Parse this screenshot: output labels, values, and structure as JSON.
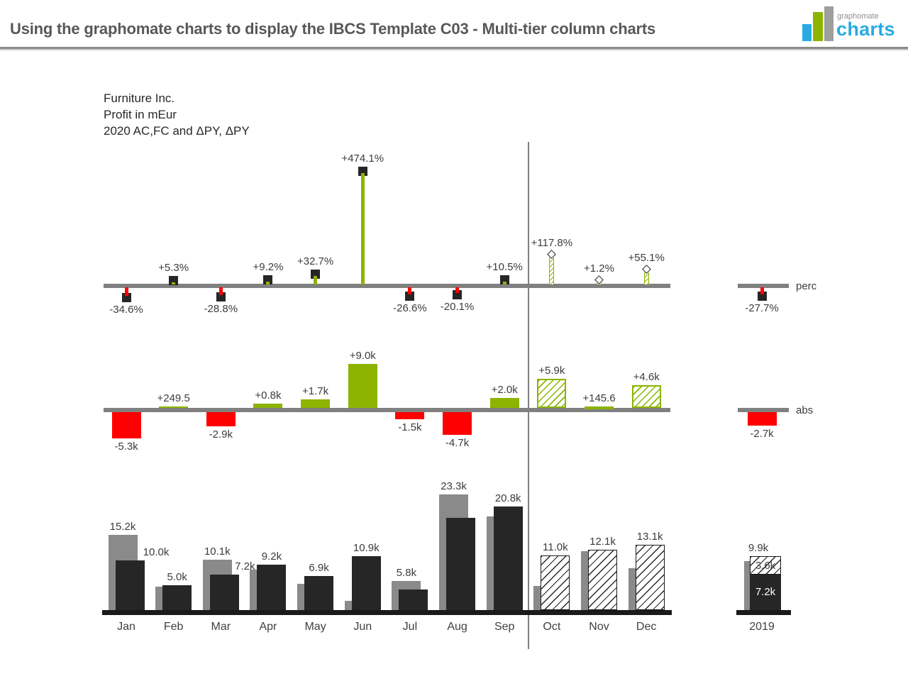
{
  "header": {
    "title": "Using the graphomate charts to display the IBCS Template C03 - Multi-tier column charts",
    "logo": {
      "small": "graphomate",
      "big": "charts"
    }
  },
  "colors": {
    "green": "#8CB400",
    "red": "#FF0000",
    "dark": "#262626",
    "gray": "#8A8A8A",
    "axis_gray": "#808080",
    "axis_black": "#1A1A1A",
    "label": "#3C3C3C",
    "logo_blue": "#29ABE2"
  },
  "chart_data": {
    "type": "bar",
    "multi_tier": true,
    "title": "Furniture Inc.",
    "unit_label": "Profit in mEur",
    "scenario_label": "2020 AC,FC and ΔPY, ΔPY",
    "categories": [
      "Jan",
      "Feb",
      "Mar",
      "Apr",
      "May",
      "Jun",
      "Jul",
      "Aug",
      "Sep",
      "Oct",
      "Nov",
      "Dec"
    ],
    "extra_category": "2019",
    "forecast_from": "Oct",
    "tiers": {
      "perc": {
        "legend": "perc",
        "unit": "%",
        "values": [
          {
            "v": -34.6,
            "label": "-34.6%",
            "kind": "ac"
          },
          {
            "v": 5.3,
            "label": "+5.3%",
            "kind": "ac"
          },
          {
            "v": -28.8,
            "label": "-28.8%",
            "kind": "ac"
          },
          {
            "v": 9.2,
            "label": "+9.2%",
            "kind": "ac"
          },
          {
            "v": 32.7,
            "label": "+32.7%",
            "kind": "ac"
          },
          {
            "v": 474.1,
            "label": "+474.1%",
            "kind": "ac"
          },
          {
            "v": -26.6,
            "label": "-26.6%",
            "kind": "ac"
          },
          {
            "v": -20.1,
            "label": "-20.1%",
            "kind": "ac"
          },
          {
            "v": 10.5,
            "label": "+10.5%",
            "kind": "ac"
          },
          {
            "v": 117.8,
            "label": "+117.8%",
            "kind": "fc"
          },
          {
            "v": 1.2,
            "label": "+1.2%",
            "kind": "fc"
          },
          {
            "v": 55.1,
            "label": "+55.1%",
            "kind": "fc"
          }
        ],
        "y2019": {
          "v": -27.7,
          "label": "-27.7%",
          "kind": "ac"
        }
      },
      "abs": {
        "legend": "abs",
        "unit": "k mEur",
        "values": [
          {
            "v": -5.3,
            "label": "-5.3k",
            "kind": "ac"
          },
          {
            "v": 0.25,
            "label": "+249.5",
            "kind": "ac"
          },
          {
            "v": -2.9,
            "label": "-2.9k",
            "kind": "ac"
          },
          {
            "v": 0.8,
            "label": "+0.8k",
            "kind": "ac"
          },
          {
            "v": 1.7,
            "label": "+1.7k",
            "kind": "ac"
          },
          {
            "v": 9.0,
            "label": "+9.0k",
            "kind": "ac"
          },
          {
            "v": -1.5,
            "label": "-1.5k",
            "kind": "ac"
          },
          {
            "v": -4.7,
            "label": "-4.7k",
            "kind": "ac"
          },
          {
            "v": 2.0,
            "label": "+2.0k",
            "kind": "ac"
          },
          {
            "v": 5.9,
            "label": "+5.9k",
            "kind": "fc"
          },
          {
            "v": 0.15,
            "label": "+145.6",
            "kind": "fc"
          },
          {
            "v": 4.6,
            "label": "+4.6k",
            "kind": "fc"
          }
        ],
        "y2019": {
          "v": -2.7,
          "label": "-2.7k",
          "kind": "ac"
        }
      },
      "columns": {
        "months": [
          {
            "py": 15.2,
            "v": 10.0,
            "kind": "ac",
            "py_label": "15.2k",
            "v_label": "10.0k",
            "v_dx": 37
          },
          {
            "py": 4.7,
            "v": 5.0,
            "kind": "ac",
            "py_label": null,
            "v_label": "5.0k"
          },
          {
            "py": 10.1,
            "v": 7.2,
            "kind": "ac",
            "py_label": "10.1k",
            "v_label": "7.2k",
            "v_dx": 29
          },
          {
            "py": 8.2,
            "v": 9.2,
            "kind": "ac",
            "py_label": null,
            "v_label": "9.2k"
          },
          {
            "py": 5.3,
            "v": 6.9,
            "kind": "ac",
            "py_label": null,
            "v_label": "6.9k"
          },
          {
            "py": 1.9,
            "v": 10.9,
            "kind": "ac",
            "py_label": null,
            "v_label": "10.9k"
          },
          {
            "py": 5.8,
            "v": 4.1,
            "kind": "ac",
            "py_label": "5.8k",
            "v_label": null
          },
          {
            "py": 23.3,
            "v": 18.6,
            "kind": "ac",
            "py_label": "23.3k",
            "v_label": null
          },
          {
            "py": 18.9,
            "v": 20.8,
            "kind": "ac",
            "py_label": null,
            "v_label": "20.8k"
          },
          {
            "py": 4.9,
            "v": 11.0,
            "kind": "fc",
            "py_label": null,
            "v_label": "11.0k"
          },
          {
            "py": 11.9,
            "v": 12.1,
            "kind": "fc",
            "py_label": null,
            "v_label": "12.1k"
          },
          {
            "py": 8.4,
            "v": 13.1,
            "kind": "fc",
            "py_label": null,
            "v_label": "13.1k"
          }
        ],
        "y2019": {
          "py": 9.9,
          "ac": 7.2,
          "fc": 3.6,
          "py_label": "9.9k",
          "ac_label": "7.2k",
          "fc_label": "3.6k"
        }
      }
    }
  }
}
